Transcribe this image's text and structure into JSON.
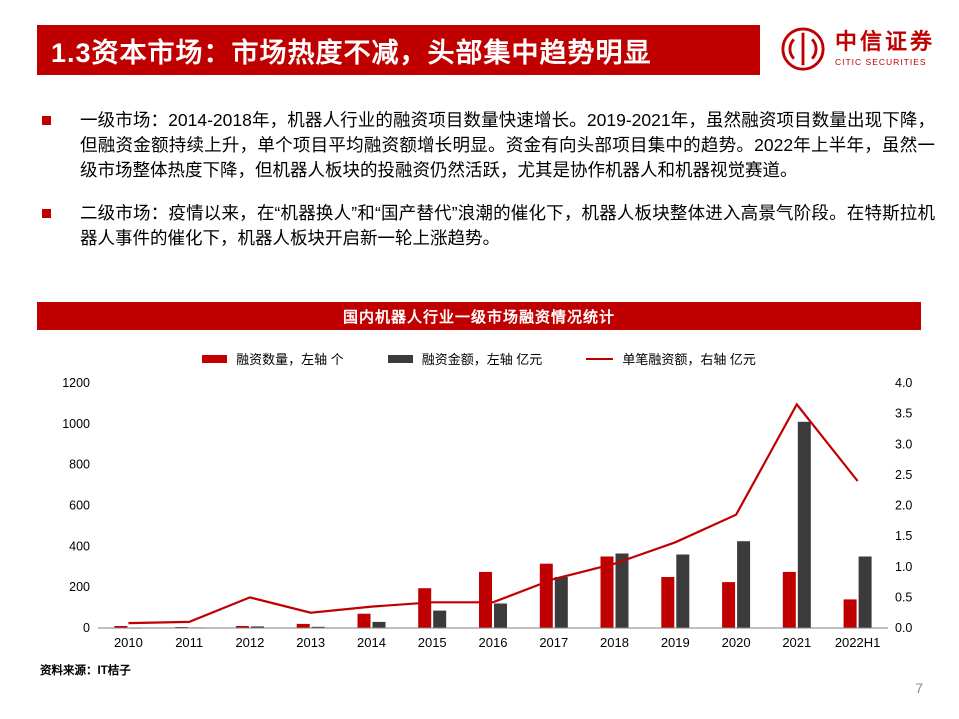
{
  "slide": {
    "title": "1.3资本市场：市场热度不减，头部集中趋势明显",
    "page_number": "7",
    "source": "资料来源：IT桔子"
  },
  "logo": {
    "name_cn": "中信证券",
    "name_en": "CITIC SECURITIES"
  },
  "bullets": [
    {
      "text": "一级市场：2014-2018年，机器人行业的融资项目数量快速增长。2019-2021年，虽然融资项目数量出现下降，但融资金额持续上升，单个项目平均融资额增长明显。资金有向头部项目集中的趋势。2022年上半年，虽然一级市场整体热度下降，但机器人板块的投融资仍然活跃，尤其是协作机器人和机器视觉赛道。"
    },
    {
      "text": "二级市场：疫情以来，在“机器换人”和“国产替代”浪潮的催化下，机器人板块整体进入高景气阶段。在特斯拉机器人事件的催化下，机器人板块开启新一轮上涨趋势。"
    }
  ],
  "chart": {
    "header": "国内机器人行业一级市场融资情况统计"
  },
  "chart_data": {
    "type": "bar",
    "title": "国内机器人行业一级市场融资情况统计",
    "categories": [
      "2010",
      "2011",
      "2012",
      "2013",
      "2014",
      "2015",
      "2016",
      "2017",
      "2018",
      "2019",
      "2020",
      "2021",
      "2022H1"
    ],
    "series": [
      {
        "name": "融资数量",
        "legend": "融资数量，左轴 个",
        "type": "bar",
        "axis": "left",
        "color": "#c00000",
        "values": [
          10,
          5,
          10,
          20,
          70,
          195,
          275,
          315,
          350,
          250,
          225,
          275,
          140
        ]
      },
      {
        "name": "融资金额",
        "legend": "融资金额，左轴 亿元",
        "type": "bar",
        "axis": "left",
        "color": "#3b3b3b",
        "values": [
          2,
          3,
          8,
          6,
          30,
          85,
          120,
          250,
          365,
          360,
          425,
          1010,
          350
        ]
      },
      {
        "name": "单笔融资额",
        "legend": "单笔融资额，右轴 亿元",
        "type": "line",
        "axis": "right",
        "color": "#c00000",
        "values": [
          0.08,
          0.1,
          0.5,
          0.25,
          0.35,
          0.42,
          0.42,
          0.8,
          1.05,
          1.4,
          1.85,
          3.65,
          2.4
        ]
      }
    ],
    "left_axis": {
      "min": 0,
      "max": 1200,
      "ticks": [
        0,
        200,
        400,
        600,
        800,
        1000,
        1200
      ]
    },
    "right_axis": {
      "min": 0,
      "max": 4,
      "ticks": [
        0,
        0.5,
        1,
        1.5,
        2,
        2.5,
        3,
        3.5,
        4
      ]
    },
    "grid": false,
    "legend_position": "top"
  },
  "colors": {
    "accent": "#c00000",
    "bar_dark": "#3b3b3b",
    "page_number_gray": "#8a8a8a"
  }
}
